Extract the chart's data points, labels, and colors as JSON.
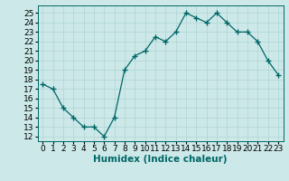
{
  "x": [
    0,
    1,
    2,
    3,
    4,
    5,
    6,
    7,
    8,
    9,
    10,
    11,
    12,
    13,
    14,
    15,
    16,
    17,
    18,
    19,
    20,
    21,
    22,
    23
  ],
  "y": [
    17.5,
    17.0,
    15.0,
    14.0,
    13.0,
    13.0,
    12.0,
    14.0,
    19.0,
    20.5,
    21.0,
    22.5,
    22.0,
    23.0,
    25.0,
    24.5,
    24.0,
    25.0,
    24.0,
    23.0,
    23.0,
    22.0,
    20.0,
    18.5
  ],
  "line_color": "#006666",
  "marker": "+",
  "marker_size": 4,
  "bg_color": "#cce8e8",
  "grid_color": "#b0d4d4",
  "xlabel": "Humidex (Indice chaleur)",
  "ylabel_ticks": [
    12,
    13,
    14,
    15,
    16,
    17,
    18,
    19,
    20,
    21,
    22,
    23,
    24,
    25
  ],
  "xlim": [
    -0.5,
    23.5
  ],
  "ylim": [
    11.5,
    25.8
  ],
  "tick_fontsize": 6.5,
  "xlabel_fontsize": 7.5,
  "linewidth": 0.9
}
